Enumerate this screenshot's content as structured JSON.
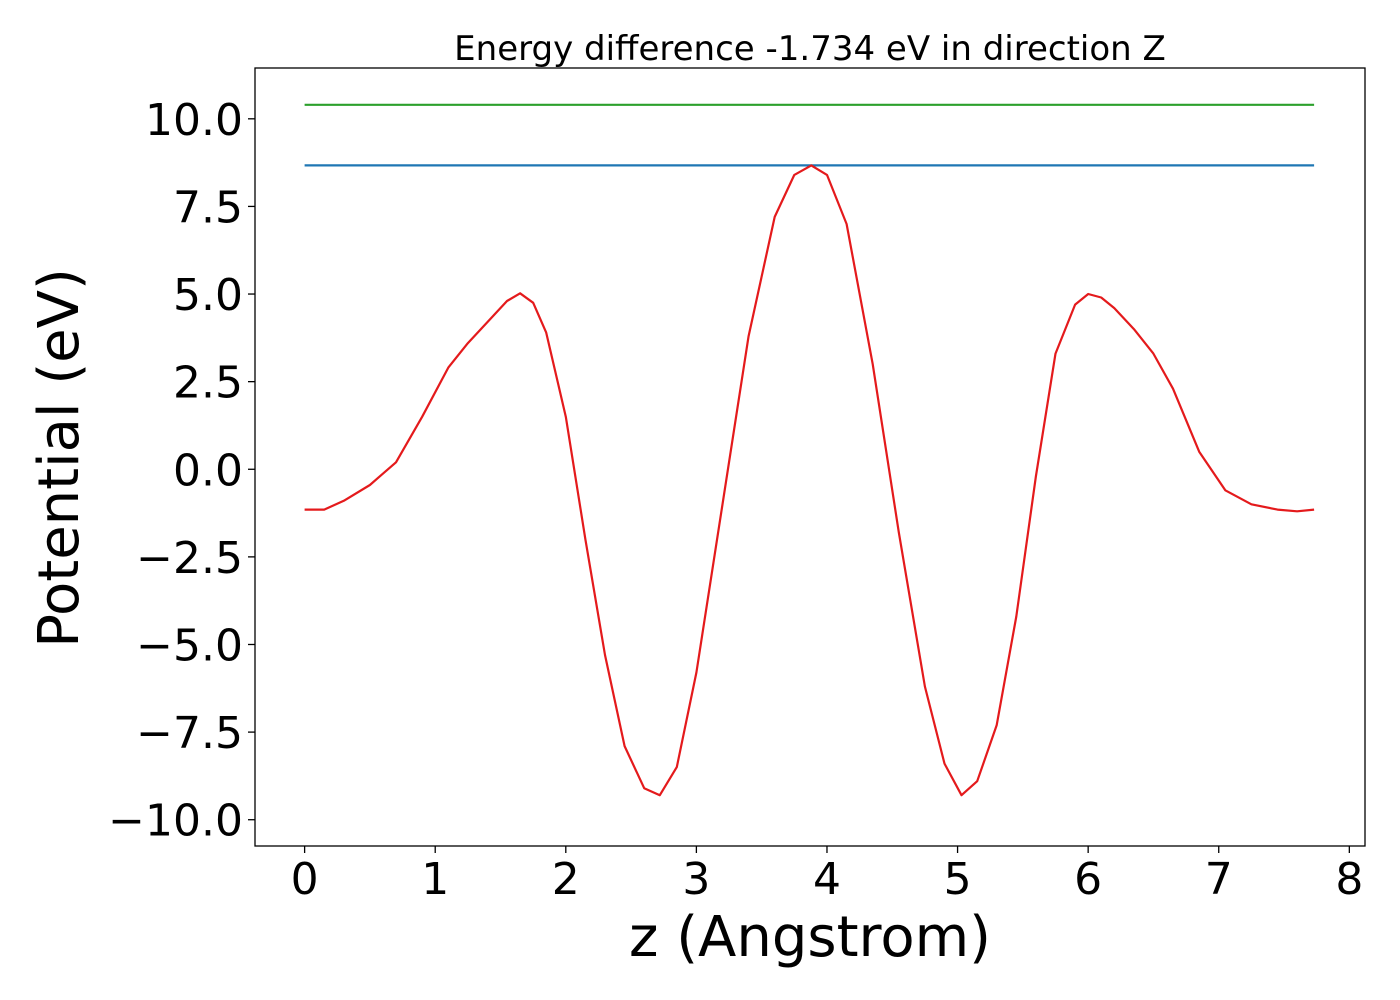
{
  "chart_data": {
    "type": "line",
    "title": "Energy difference -1.734 eV in direction Z",
    "xlabel": "z (Angstrom)",
    "ylabel": "Potential (eV)",
    "xlim": [
      -0.38,
      8.12
    ],
    "ylim": [
      -10.75,
      11.45
    ],
    "xticks": [
      0,
      1,
      2,
      3,
      4,
      5,
      6,
      7,
      8
    ],
    "xtick_labels": [
      "0",
      "1",
      "2",
      "3",
      "4",
      "5",
      "6",
      "7",
      "8"
    ],
    "yticks": [
      -10,
      -7.5,
      -5,
      -2.5,
      0,
      2.5,
      5,
      7.5,
      10
    ],
    "ytick_labels": [
      "−10.0",
      "−7.5",
      "−5.0",
      "−2.5",
      "0.0",
      "2.5",
      "5.0",
      "7.5",
      "10.0"
    ],
    "grid": false,
    "series": [
      {
        "color": "#2ca02c",
        "x": [
          0,
          7.73
        ],
        "y": [
          10.4,
          10.4
        ]
      },
      {
        "color": "#1f77b4",
        "x": [
          0,
          7.73
        ],
        "y": [
          8.67,
          8.67
        ]
      },
      {
        "color": "#e41a1c",
        "x": [
          0,
          0.15,
          0.3,
          0.5,
          0.7,
          0.9,
          1.1,
          1.25,
          1.4,
          1.55,
          1.65,
          1.75,
          1.85,
          2.0,
          2.15,
          2.3,
          2.45,
          2.6,
          2.72,
          2.85,
          3.0,
          3.2,
          3.4,
          3.6,
          3.75,
          3.88,
          4.0,
          4.15,
          4.35,
          4.55,
          4.75,
          4.9,
          5.03,
          5.15,
          5.3,
          5.45,
          5.6,
          5.75,
          5.9,
          6.0,
          6.1,
          6.2,
          6.35,
          6.5,
          6.65,
          6.85,
          7.05,
          7.25,
          7.45,
          7.6,
          7.73
        ],
        "y": [
          -1.15,
          -1.15,
          -0.9,
          -0.45,
          0.2,
          1.5,
          2.9,
          3.6,
          4.2,
          4.8,
          5.02,
          4.75,
          3.9,
          1.5,
          -2.0,
          -5.3,
          -7.9,
          -9.1,
          -9.3,
          -8.5,
          -5.8,
          -1.0,
          3.8,
          7.2,
          8.4,
          8.67,
          8.4,
          7.0,
          3.0,
          -1.8,
          -6.2,
          -8.4,
          -9.3,
          -8.9,
          -7.3,
          -4.2,
          -0.2,
          3.3,
          4.7,
          5.0,
          4.9,
          4.6,
          4.0,
          3.3,
          2.3,
          0.5,
          -0.6,
          -1.0,
          -1.15,
          -1.2,
          -1.15
        ]
      }
    ]
  }
}
